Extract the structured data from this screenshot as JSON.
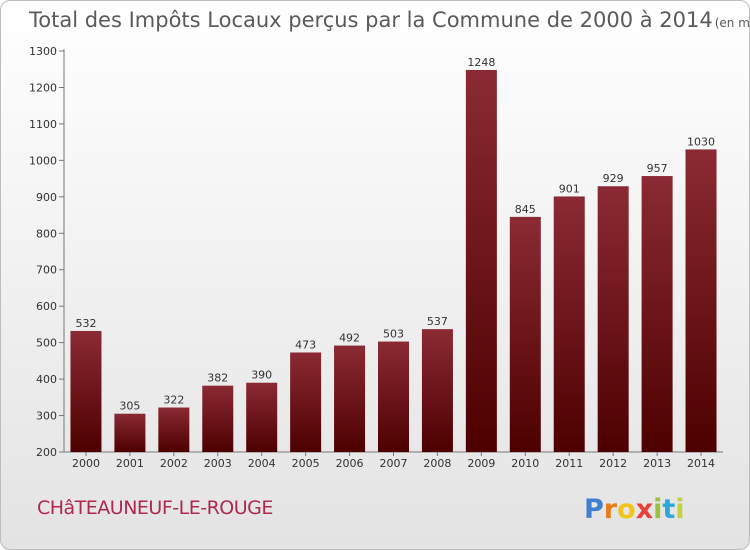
{
  "chart_data": {
    "type": "bar",
    "title": "Total des Impôts Locaux perçus par la Commune de 2000 à 2014",
    "unit": "(en milliers d'€)",
    "categories": [
      "2000",
      "2001",
      "2002",
      "2003",
      "2004",
      "2005",
      "2006",
      "2007",
      "2008",
      "2009",
      "2010",
      "2011",
      "2012",
      "2013",
      "2014"
    ],
    "values": [
      532,
      305,
      322,
      382,
      390,
      473,
      492,
      503,
      537,
      1248,
      845,
      901,
      929,
      957,
      1030
    ],
    "ylim": [
      200,
      1300
    ],
    "yticks": [
      200,
      300,
      400,
      500,
      600,
      700,
      800,
      900,
      1000,
      1100,
      1200,
      1300
    ],
    "xlabel": "",
    "ylabel": "",
    "grid": false,
    "bar_color_top": "#8b2a34",
    "bar_color_bottom": "#4d0000"
  },
  "commune": "CHâTEAUNEUF-LE-ROUGE",
  "logo": {
    "letters": [
      "P",
      "r",
      "o",
      "x",
      "i",
      "t",
      "i"
    ],
    "colors": [
      "#3f7fcf",
      "#e87d1e",
      "#f0c419",
      "#e8413a",
      "#9bc23c",
      "#2aa8d8",
      "#c2d33b"
    ]
  }
}
